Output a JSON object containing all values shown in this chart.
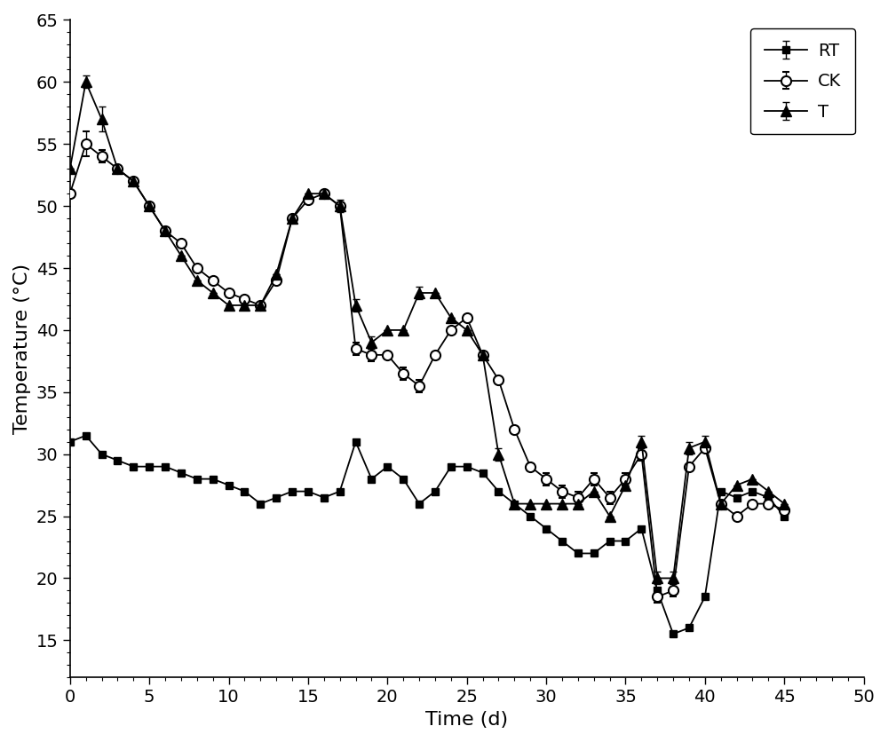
{
  "RT_x": [
    0,
    1,
    2,
    3,
    4,
    5,
    6,
    7,
    8,
    9,
    10,
    11,
    12,
    13,
    14,
    15,
    16,
    17,
    18,
    19,
    20,
    21,
    22,
    23,
    24,
    25,
    26,
    27,
    28,
    29,
    30,
    31,
    32,
    33,
    34,
    35,
    36,
    37,
    38,
    39,
    40,
    41,
    42,
    43,
    44,
    45
  ],
  "RT_y": [
    31,
    31.5,
    30,
    29.5,
    29,
    29,
    29,
    28.5,
    28,
    28,
    27.5,
    27,
    26,
    26.5,
    27,
    27,
    26.5,
    27,
    31,
    28,
    29,
    28,
    26,
    27,
    29,
    29,
    28.5,
    27,
    26,
    25,
    24,
    23,
    22,
    22,
    23,
    23,
    24,
    19,
    15.5,
    16,
    18.5,
    27,
    26.5,
    27,
    26.5,
    25
  ],
  "RT_yerr": [
    0,
    0,
    0,
    0,
    0,
    0,
    0,
    0,
    0,
    0,
    0,
    0,
    0,
    0,
    0,
    0,
    0,
    0,
    0,
    0,
    0,
    0,
    0,
    0,
    0,
    0,
    0,
    0,
    0,
    0,
    0,
    0,
    0,
    0,
    0,
    0,
    0,
    0,
    0,
    0,
    0,
    0,
    0,
    0,
    0,
    0
  ],
  "CK_x": [
    0,
    1,
    2,
    3,
    4,
    5,
    6,
    7,
    8,
    9,
    10,
    11,
    12,
    13,
    14,
    15,
    16,
    17,
    18,
    19,
    20,
    21,
    22,
    23,
    24,
    25,
    26,
    27,
    28,
    29,
    30,
    31,
    32,
    33,
    34,
    35,
    36,
    37,
    38,
    39,
    40,
    41,
    42,
    43,
    44,
    45
  ],
  "CK_y": [
    51,
    55,
    54,
    53,
    52,
    50,
    48,
    47,
    45,
    44,
    43,
    42.5,
    42,
    44,
    49,
    50.5,
    51,
    50,
    38.5,
    38,
    38,
    36.5,
    35.5,
    38,
    40,
    41,
    38,
    36,
    32,
    29,
    28,
    27,
    26.5,
    28,
    26.5,
    28,
    30,
    18.5,
    19,
    29,
    30.5,
    26,
    25,
    26,
    26,
    25.5
  ],
  "CK_yerr": [
    0,
    1.0,
    0.5,
    0,
    0,
    0,
    0,
    0,
    0,
    0,
    0,
    0,
    0,
    0,
    0,
    0,
    0,
    0,
    0.5,
    0.5,
    0,
    0.5,
    0.5,
    0,
    0,
    0,
    0,
    0,
    0,
    0,
    0.5,
    0.5,
    0.5,
    0.5,
    0.5,
    0.5,
    0.5,
    0.5,
    0.5,
    0,
    0,
    0,
    0,
    0,
    0,
    0
  ],
  "T_x": [
    0,
    1,
    2,
    3,
    4,
    5,
    6,
    7,
    8,
    9,
    10,
    11,
    12,
    13,
    14,
    15,
    16,
    17,
    18,
    19,
    20,
    21,
    22,
    23,
    24,
    25,
    26,
    27,
    28,
    29,
    30,
    31,
    32,
    33,
    34,
    35,
    36,
    37,
    38,
    39,
    40,
    41,
    42,
    43,
    44,
    45
  ],
  "T_y": [
    53,
    60,
    57,
    53,
    52,
    50,
    48,
    46,
    44,
    43,
    42,
    42,
    42,
    44.5,
    49,
    51,
    51,
    50,
    42,
    39,
    40,
    40,
    43,
    43,
    41,
    40,
    38,
    30,
    26,
    26,
    26,
    26,
    26,
    27,
    25,
    27.5,
    31,
    20,
    20,
    30.5,
    31,
    26,
    27.5,
    28,
    27,
    26
  ],
  "T_yerr": [
    0,
    0.5,
    1.0,
    0,
    0,
    0,
    0,
    0,
    0,
    0,
    0,
    0,
    0,
    0,
    0,
    0,
    0,
    0.5,
    0.5,
    0.5,
    0,
    0,
    0.5,
    0,
    0,
    0,
    0,
    0.5,
    0,
    0,
    0,
    0,
    0,
    0,
    0,
    0,
    0.5,
    0.5,
    0.5,
    0.5,
    0.5,
    0,
    0,
    0,
    0,
    0
  ],
  "xlim": [
    0,
    50
  ],
  "ylim": [
    12,
    65
  ],
  "xticks": [
    0,
    5,
    10,
    15,
    20,
    25,
    30,
    35,
    40,
    45,
    50
  ],
  "yticks": [
    15,
    20,
    25,
    30,
    35,
    40,
    45,
    50,
    55,
    60,
    65
  ],
  "xlabel": "Time (d)",
  "ylabel": "Temperature (°C)",
  "bg_color": "#ffffff",
  "line_color": "#000000",
  "legend_labels": [
    "RT",
    "CK",
    "T"
  ],
  "legend_loc": "upper right",
  "figsize": [
    10.0,
    8.36
  ],
  "dpi": 100
}
